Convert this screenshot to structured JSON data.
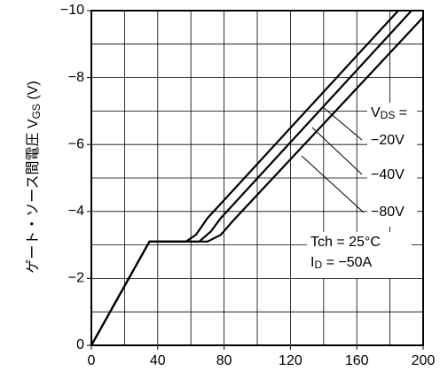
{
  "chart_data": {
    "type": "line",
    "ylabel": {
      "main": "ゲート・ソース間電圧  V",
      "sub": "GS",
      "rest": "  (V)"
    },
    "xlim": [
      0,
      200
    ],
    "ylim": [
      0,
      -10
    ],
    "xticks": [
      0,
      40,
      80,
      120,
      160,
      200
    ],
    "yticks": [
      0,
      {
        "value": -2,
        "label": "−2"
      },
      {
        "value": -4,
        "label": "−4"
      },
      {
        "value": -6,
        "label": "−6"
      },
      {
        "value": -8,
        "label": "−8"
      },
      {
        "value": -10,
        "label": "−10"
      }
    ],
    "xgrid": [
      20,
      40,
      60,
      80,
      100,
      120,
      140,
      160,
      180
    ],
    "ygrid": [
      -1,
      -2,
      -3,
      -4,
      -5,
      -6,
      -7,
      -8,
      -9
    ],
    "color": "#000000",
    "series": [
      {
        "name": "−20V",
        "x": [
          0,
          35,
          57,
          63,
          70,
          185
        ],
        "values": [
          0,
          -3.1,
          -3.1,
          -3.3,
          -3.8,
          -10
        ]
      },
      {
        "name": "−40V",
        "x": [
          0,
          35,
          65,
          72,
          78,
          193
        ],
        "values": [
          0,
          -3.1,
          -3.1,
          -3.4,
          -3.8,
          -10
        ]
      },
      {
        "name": "−80V",
        "x": [
          0,
          35,
          70,
          78,
          85,
          200
        ],
        "values": [
          0,
          -3.1,
          -3.1,
          -3.3,
          -3.7,
          -9.8
        ]
      }
    ],
    "vds_label": {
      "main": "V",
      "sub": "DS",
      "rest": " ="
    },
    "tch_label": "Tch = 25°C",
    "id_label": {
      "main": "I",
      "sub": "D",
      "rest": " = −50A"
    }
  }
}
